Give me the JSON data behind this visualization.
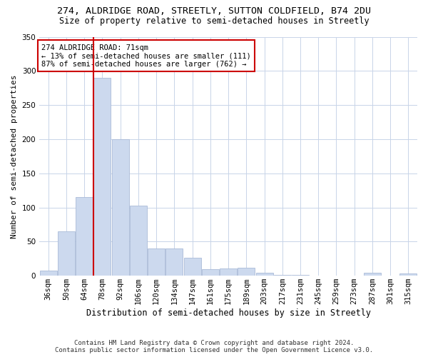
{
  "title_line1": "274, ALDRIDGE ROAD, STREETLY, SUTTON COLDFIELD, B74 2DU",
  "title_line2": "Size of property relative to semi-detached houses in Streetly",
  "xlabel": "Distribution of semi-detached houses by size in Streetly",
  "ylabel": "Number of semi-detached properties",
  "footer_line1": "Contains HM Land Registry data © Crown copyright and database right 2024.",
  "footer_line2": "Contains public sector information licensed under the Open Government Licence v3.0.",
  "categories": [
    "36sqm",
    "50sqm",
    "64sqm",
    "78sqm",
    "92sqm",
    "106sqm",
    "120sqm",
    "134sqm",
    "147sqm",
    "161sqm",
    "175sqm",
    "189sqm",
    "203sqm",
    "217sqm",
    "231sqm",
    "245sqm",
    "259sqm",
    "273sqm",
    "287sqm",
    "301sqm",
    "315sqm"
  ],
  "values": [
    8,
    65,
    115,
    290,
    200,
    103,
    40,
    40,
    26,
    10,
    11,
    12,
    4,
    1,
    1,
    0,
    0,
    0,
    4,
    0,
    3
  ],
  "bar_color": "#ccd9ee",
  "bar_edge_color": "#aabbd8",
  "vline_color": "#cc0000",
  "vline_x": 2.5,
  "annotation_text": "274 ALDRIDGE ROAD: 71sqm\n← 13% of semi-detached houses are smaller (111)\n87% of semi-detached houses are larger (762) →",
  "annotation_box_color": "#ffffff",
  "annotation_box_edge_color": "#cc0000",
  "ylim": [
    0,
    350
  ],
  "yticks": [
    0,
    50,
    100,
    150,
    200,
    250,
    300,
    350
  ],
  "background_color": "#ffffff",
  "grid_color": "#c8d4e8",
  "title_fontsize": 9.5,
  "subtitle_fontsize": 8.5,
  "ylabel_fontsize": 8,
  "xlabel_fontsize": 8.5,
  "tick_fontsize": 7.5,
  "annotation_fontsize": 7.5,
  "footer_fontsize": 6.5
}
